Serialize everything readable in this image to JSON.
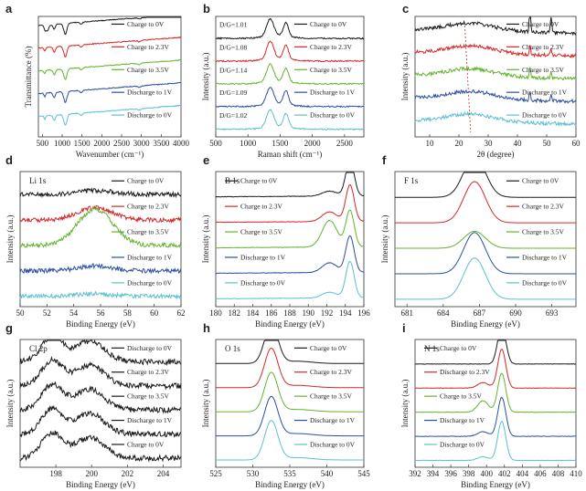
{
  "figure": {
    "description_free": true
  },
  "chart_data": [
    {
      "id": "a",
      "letter": "a",
      "type": "line",
      "title": "",
      "xlabel": "Wavenumber (cm⁻¹)",
      "ylabel": "Transmittance (%)",
      "xlim": [
        400,
        4000
      ],
      "reverse_x": false,
      "xticks": [
        500,
        1000,
        1500,
        2000,
        2500,
        3000,
        3500,
        4000
      ],
      "show_y_ticks": false,
      "legend_side": "right",
      "series": [
        {
          "name": "Charge to 0V",
          "color": "#1a1a1a"
        },
        {
          "name": "Charge to 2.3V",
          "color": "#d62728"
        },
        {
          "name": "Charge to 3.5V",
          "color": "#63b32e"
        },
        {
          "name": "Discharge to 1V",
          "color": "#2a4fa0"
        },
        {
          "name": "Discharge to 0V",
          "color": "#5bc0d0"
        }
      ]
    },
    {
      "id": "b",
      "letter": "b",
      "type": "line",
      "title": "",
      "xlabel": "Raman shift (cm⁻¹)",
      "ylabel": "Intensity (a.u.)",
      "xlim": [
        500,
        2800
      ],
      "reverse_x": false,
      "xticks": [
        500,
        1000,
        1500,
        2000,
        2500
      ],
      "show_y_ticks": false,
      "legend_side": "right",
      "annotations": [
        "D/G=1.01",
        "D/G=1.08",
        "D/G=1.14",
        "D/G=1.09",
        "D/G=1.02"
      ],
      "series": [
        {
          "name": "Charge to 0V",
          "color": "#1a1a1a"
        },
        {
          "name": "Charge to 2.3V",
          "color": "#d62728"
        },
        {
          "name": "Charge to 3.5V",
          "color": "#63b32e"
        },
        {
          "name": "Discharge to 1V",
          "color": "#2a4fa0"
        },
        {
          "name": "Discharge to 0V",
          "color": "#5bc0d0"
        }
      ]
    },
    {
      "id": "c",
      "letter": "c",
      "type": "line",
      "title": "",
      "xlabel": "2θ (degree)",
      "ylabel": "Intensity (a.u.)",
      "xlim": [
        5,
        60
      ],
      "reverse_x": false,
      "xticks": [
        10,
        20,
        30,
        40,
        50,
        60
      ],
      "show_y_ticks": false,
      "legend_side": "right",
      "series": [
        {
          "name": "Charge to 0V",
          "color": "#1a1a1a"
        },
        {
          "name": "Charge to 2.3V",
          "color": "#d62728"
        },
        {
          "name": "Charge to 3.5V",
          "color": "#63b32e"
        },
        {
          "name": "Discharge to 1V",
          "color": "#2a4fa0"
        },
        {
          "name": "Discharge to 0V",
          "color": "#5bc0d0"
        }
      ]
    },
    {
      "id": "d",
      "letter": "d",
      "type": "line",
      "title": "Li 1s",
      "xlabel": "Binding Energy (eV)",
      "ylabel": "Intensity (a.u.)",
      "xlim": [
        50,
        62
      ],
      "reverse_x": false,
      "xticks": [
        50,
        52,
        54,
        56,
        58,
        60,
        62
      ],
      "show_y_ticks": false,
      "legend_side": "right",
      "series": [
        {
          "name": "Charge to 0V",
          "color": "#1a1a1a"
        },
        {
          "name": "Charge to 2.3V",
          "color": "#d62728"
        },
        {
          "name": "Charge to 3.5V",
          "color": "#63b32e"
        },
        {
          "name": "Discharge to 1V",
          "color": "#2a4fa0"
        },
        {
          "name": "Discharge to 0V",
          "color": "#5bc0d0"
        }
      ]
    },
    {
      "id": "e",
      "letter": "e",
      "type": "line",
      "title": "B 1s",
      "xlabel": "Binding Energy (eV)",
      "ylabel": "Intensity (a.u.)",
      "xlim": [
        180,
        196
      ],
      "reverse_x": false,
      "xticks": [
        180,
        182,
        184,
        186,
        188,
        190,
        192,
        194,
        196
      ],
      "show_y_ticks": false,
      "legend_side": "left",
      "series": [
        {
          "name": "Charge to 0V",
          "color": "#1a1a1a"
        },
        {
          "name": "Charge to 2.3V",
          "color": "#d62728"
        },
        {
          "name": "Charge to 3.5V",
          "color": "#63b32e"
        },
        {
          "name": "Discharge to 1V",
          "color": "#2a4fa0"
        },
        {
          "name": "Discharge to 0V",
          "color": "#5bc0d0"
        }
      ]
    },
    {
      "id": "f",
      "letter": "f",
      "type": "line",
      "title": "F 1s",
      "xlabel": "Binding Energy (eV)",
      "ylabel": "Intensity (a.u.)",
      "xlim": [
        680,
        695
      ],
      "reverse_x": false,
      "xticks": [
        681,
        684,
        687,
        690,
        693
      ],
      "show_y_ticks": false,
      "legend_side": "right",
      "series": [
        {
          "name": "Charge to 0V",
          "color": "#1a1a1a"
        },
        {
          "name": "Charge to 2.3V",
          "color": "#d62728"
        },
        {
          "name": "Charge to 3.5V",
          "color": "#63b32e"
        },
        {
          "name": "Discharge to 1V",
          "color": "#2a4fa0"
        },
        {
          "name": "Discharge to 0V",
          "color": "#5bc0d0"
        }
      ]
    },
    {
      "id": "g",
      "letter": "g",
      "type": "line",
      "title": "Cl 2p",
      "xlabel": "Binding Energy (eV)",
      "ylabel": "Intensity (a.u.)",
      "xlim": [
        196,
        205
      ],
      "reverse_x": false,
      "xticks": [
        198,
        200,
        202,
        204
      ],
      "show_y_ticks": false,
      "legend_side": "right",
      "series": [
        {
          "name": "Discharge to 0V",
          "color": "#1a1a1a"
        },
        {
          "name": "Charge to 2.3V",
          "color": "#1a1a1a"
        },
        {
          "name": "Charge to 3.5V",
          "color": "#1a1a1a"
        },
        {
          "name": "Discharge to 1V",
          "color": "#1a1a1a"
        },
        {
          "name": "Charge to 0V",
          "color": "#1a1a1a"
        }
      ]
    },
    {
      "id": "h",
      "letter": "h",
      "type": "line",
      "title": "O 1s",
      "xlabel": "Binding Energy (eV)",
      "ylabel": "Intensity (a.u.)",
      "xlim": [
        525,
        545
      ],
      "reverse_x": false,
      "xticks": [
        525,
        530,
        535,
        540,
        545
      ],
      "show_y_ticks": false,
      "legend_side": "right",
      "series": [
        {
          "name": "Charge to 0V",
          "color": "#1a1a1a"
        },
        {
          "name": "Charge to 2.3V",
          "color": "#d62728"
        },
        {
          "name": "Charge to 3.5V",
          "color": "#63b32e"
        },
        {
          "name": "Discharge to 1V",
          "color": "#2a4fa0"
        },
        {
          "name": "Discharge to 0V",
          "color": "#5bc0d0"
        }
      ]
    },
    {
      "id": "i",
      "letter": "i",
      "type": "line",
      "title": "N 1s",
      "xlabel": "Binding Energy (eV)",
      "ylabel": "Intensity (a.u.)",
      "xlim": [
        392,
        410
      ],
      "reverse_x": false,
      "xticks": [
        392,
        394,
        396,
        398,
        400,
        402,
        404,
        406,
        408,
        410
      ],
      "show_y_ticks": false,
      "legend_side": "left",
      "series": [
        {
          "name": "Charge to 0V",
          "color": "#1a1a1a"
        },
        {
          "name": "Discharge to 2.3V",
          "color": "#d62728"
        },
        {
          "name": "Charge to 3.5V",
          "color": "#63b32e"
        },
        {
          "name": "Discharge to 1V",
          "color": "#2a4fa0"
        },
        {
          "name": "Discharge to 0V",
          "color": "#5bc0d0"
        }
      ]
    }
  ]
}
